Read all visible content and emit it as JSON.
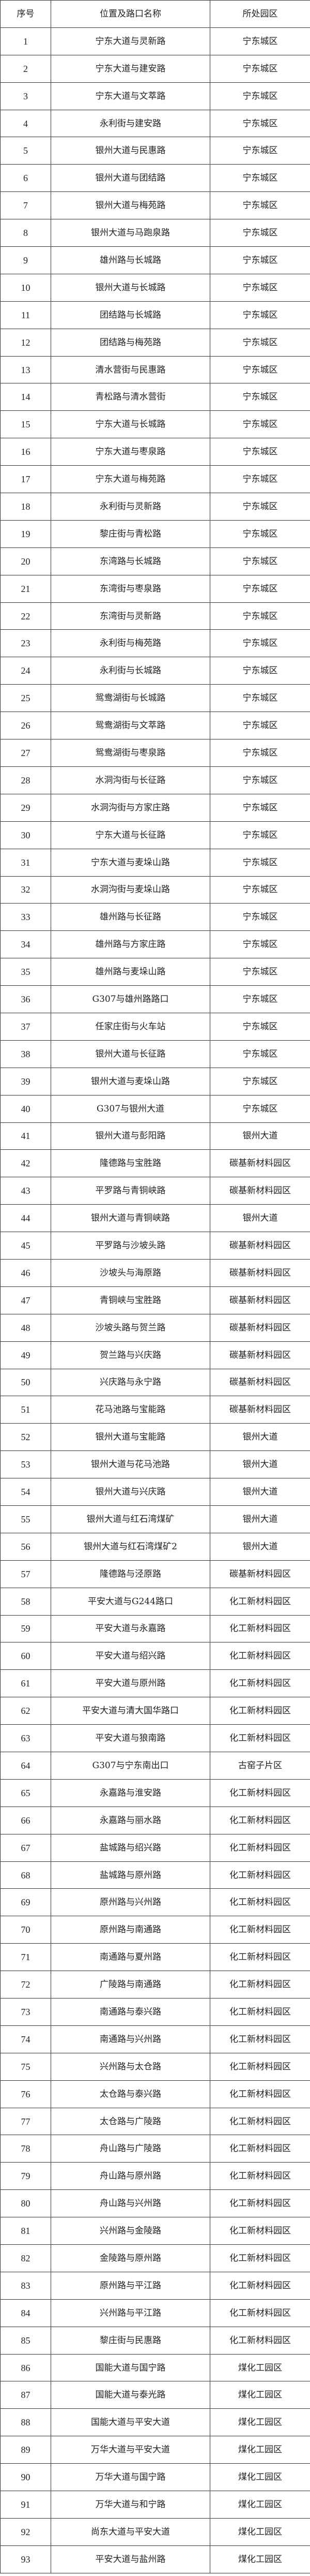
{
  "table": {
    "headers": [
      "序号",
      "位置及路口名称",
      "所处园区"
    ],
    "rows": [
      [
        "1",
        "宁东大道与灵新路",
        "宁东城区"
      ],
      [
        "2",
        "宁东大道与建安路",
        "宁东城区"
      ],
      [
        "3",
        "宁东大道与文萃路",
        "宁东城区"
      ],
      [
        "4",
        "永利街与建安路",
        "宁东城区"
      ],
      [
        "5",
        "银州大道与民惠路",
        "宁东城区"
      ],
      [
        "6",
        "银州大道与团结路",
        "宁东城区"
      ],
      [
        "7",
        "银州大道与梅苑路",
        "宁东城区"
      ],
      [
        "8",
        "银州大道与马跑泉路",
        "宁东城区"
      ],
      [
        "9",
        "雄州路与长城路",
        "宁东城区"
      ],
      [
        "10",
        "银州大道与长城路",
        "宁东城区"
      ],
      [
        "11",
        "团结路与长城路",
        "宁东城区"
      ],
      [
        "12",
        "团结路与梅苑路",
        "宁东城区"
      ],
      [
        "13",
        "清水营街与民惠路",
        "宁东城区"
      ],
      [
        "14",
        "青松路与清水营街",
        "宁东城区"
      ],
      [
        "15",
        "宁东大道与长城路",
        "宁东城区"
      ],
      [
        "16",
        "宁东大道与枣泉路",
        "宁东城区"
      ],
      [
        "17",
        "宁东大道与梅苑路",
        "宁东城区"
      ],
      [
        "18",
        "永利街与灵新路",
        "宁东城区"
      ],
      [
        "19",
        "黎庄街与青松路",
        "宁东城区"
      ],
      [
        "20",
        "东湾路与长城路",
        "宁东城区"
      ],
      [
        "21",
        "东湾街与枣泉路",
        "宁东城区"
      ],
      [
        "22",
        "东湾街与灵新路",
        "宁东城区"
      ],
      [
        "23",
        "永利街与梅苑路",
        "宁东城区"
      ],
      [
        "24",
        "永利街与长城路",
        "宁东城区"
      ],
      [
        "25",
        "鸳鸯湖街与长城路",
        "宁东城区"
      ],
      [
        "26",
        "鸳鸯湖街与文萃路",
        "宁东城区"
      ],
      [
        "27",
        "鸳鸯湖街与枣泉路",
        "宁东城区"
      ],
      [
        "28",
        "水洞沟街与长征路",
        "宁东城区"
      ],
      [
        "29",
        "水洞沟街与方家庄路",
        "宁东城区"
      ],
      [
        "30",
        "宁东大道与长征路",
        "宁东城区"
      ],
      [
        "31",
        "宁东大道与麦垛山路",
        "宁东城区"
      ],
      [
        "32",
        "水洞沟街与麦垛山路",
        "宁东城区"
      ],
      [
        "33",
        "雄州路与长征路",
        "宁东城区"
      ],
      [
        "34",
        "雄州路与方家庄路",
        "宁东城区"
      ],
      [
        "35",
        "雄州路与麦垛山路",
        "宁东城区"
      ],
      [
        "36",
        "G307与雄州路路口",
        "宁东城区"
      ],
      [
        "37",
        "任家庄街与火车站",
        "宁东城区"
      ],
      [
        "38",
        "银州大道与长征路",
        "宁东城区"
      ],
      [
        "39",
        "银州大道与麦垛山路",
        "宁东城区"
      ],
      [
        "40",
        "G307与银州大道",
        "宁东城区"
      ],
      [
        "41",
        "银州大道与彭阳路",
        "银州大道"
      ],
      [
        "42",
        "隆德路与宝胜路",
        "碳基新材料园区"
      ],
      [
        "43",
        "平罗路与青铜峡路",
        "碳基新材料园区"
      ],
      [
        "44",
        "银州大道与青铜峡路",
        "银州大道"
      ],
      [
        "45",
        "平罗路与沙坡头路",
        "碳基新材料园区"
      ],
      [
        "46",
        "沙坡头与海原路",
        "碳基新材料园区"
      ],
      [
        "47",
        "青铜峡与宝胜路",
        "碳基新材料园区"
      ],
      [
        "48",
        "沙坡头路与贺兰路",
        "碳基新材料园区"
      ],
      [
        "49",
        "贺兰路与兴庆路",
        "碳基新材料园区"
      ],
      [
        "50",
        "兴庆路与永宁路",
        "碳基新材料园区"
      ],
      [
        "51",
        "花马池路与宝能路",
        "碳基新材料园区"
      ],
      [
        "52",
        "银州大道与宝能路",
        "银州大道"
      ],
      [
        "53",
        "银州大道与花马池路",
        "银州大道"
      ],
      [
        "54",
        "银州大道与兴庆路",
        "银州大道"
      ],
      [
        "55",
        "银州大道与红石湾煤矿",
        "银州大道"
      ],
      [
        "56",
        "银州大道与红石湾煤矿2",
        "银州大道"
      ],
      [
        "57",
        "隆德路与泾原路",
        "碳基新材料园区"
      ],
      [
        "58",
        "平安大道与G244路口",
        "化工新材料园区"
      ],
      [
        "59",
        "平安大道与永嘉路",
        "化工新材料园区"
      ],
      [
        "60",
        "平安大道与绍兴路",
        "化工新材料园区"
      ],
      [
        "61",
        "平安大道与原州路",
        "化工新材料园区"
      ],
      [
        "62",
        "平安大道与清大国华路口",
        "化工新材料园区"
      ],
      [
        "63",
        "平安大道与狼南路",
        "化工新材料园区"
      ],
      [
        "64",
        "G307与宁东南出口",
        "古窑子片区"
      ],
      [
        "65",
        "永嘉路与淮安路",
        "化工新材料园区"
      ],
      [
        "66",
        "永嘉路与丽水路",
        "化工新材料园区"
      ],
      [
        "67",
        "盐城路与绍兴路",
        "化工新材料园区"
      ],
      [
        "68",
        "盐城路与原州路",
        "化工新材料园区"
      ],
      [
        "69",
        "原州路与兴州路",
        "化工新材料园区"
      ],
      [
        "70",
        "原州路与南通路",
        "化工新材料园区"
      ],
      [
        "71",
        "南通路与夏州路",
        "化工新材料园区"
      ],
      [
        "72",
        "广陵路与南通路",
        "化工新材料园区"
      ],
      [
        "73",
        "南通路与泰兴路",
        "化工新材料园区"
      ],
      [
        "74",
        "南通路与兴州路",
        "化工新材料园区"
      ],
      [
        "75",
        "兴州路与太仓路",
        "化工新材料园区"
      ],
      [
        "76",
        "太仓路与泰兴路",
        "化工新材料园区"
      ],
      [
        "77",
        "太仓路与广陵路",
        "化工新材料园区"
      ],
      [
        "78",
        "舟山路与广陵路",
        "化工新材料园区"
      ],
      [
        "79",
        "舟山路与原州路",
        "化工新材料园区"
      ],
      [
        "80",
        "舟山路与兴州路",
        "化工新材料园区"
      ],
      [
        "81",
        "兴州路与金陵路",
        "化工新材料园区"
      ],
      [
        "82",
        "金陵路与原州路",
        "化工新材料园区"
      ],
      [
        "83",
        "原州路与平江路",
        "化工新材料园区"
      ],
      [
        "84",
        "兴州路与平江路",
        "化工新材料园区"
      ],
      [
        "85",
        "黎庄街与民惠路",
        "化工新材料园区"
      ],
      [
        "86",
        "国能大道与国宁路",
        "煤化工园区"
      ],
      [
        "87",
        "国能大道与泰光路",
        "煤化工园区"
      ],
      [
        "88",
        "国能大道与平安大道",
        "煤化工园区"
      ],
      [
        "89",
        "万华大道与平安大道",
        "煤化工园区"
      ],
      [
        "90",
        "万华大道与国宁路",
        "煤化工园区"
      ],
      [
        "91",
        "万华大道与和宁路",
        "煤化工园区"
      ],
      [
        "92",
        "尚东大道与平安大道",
        "煤化工园区"
      ],
      [
        "93",
        "平安大道与盐州路",
        "煤化工园区"
      ]
    ]
  }
}
